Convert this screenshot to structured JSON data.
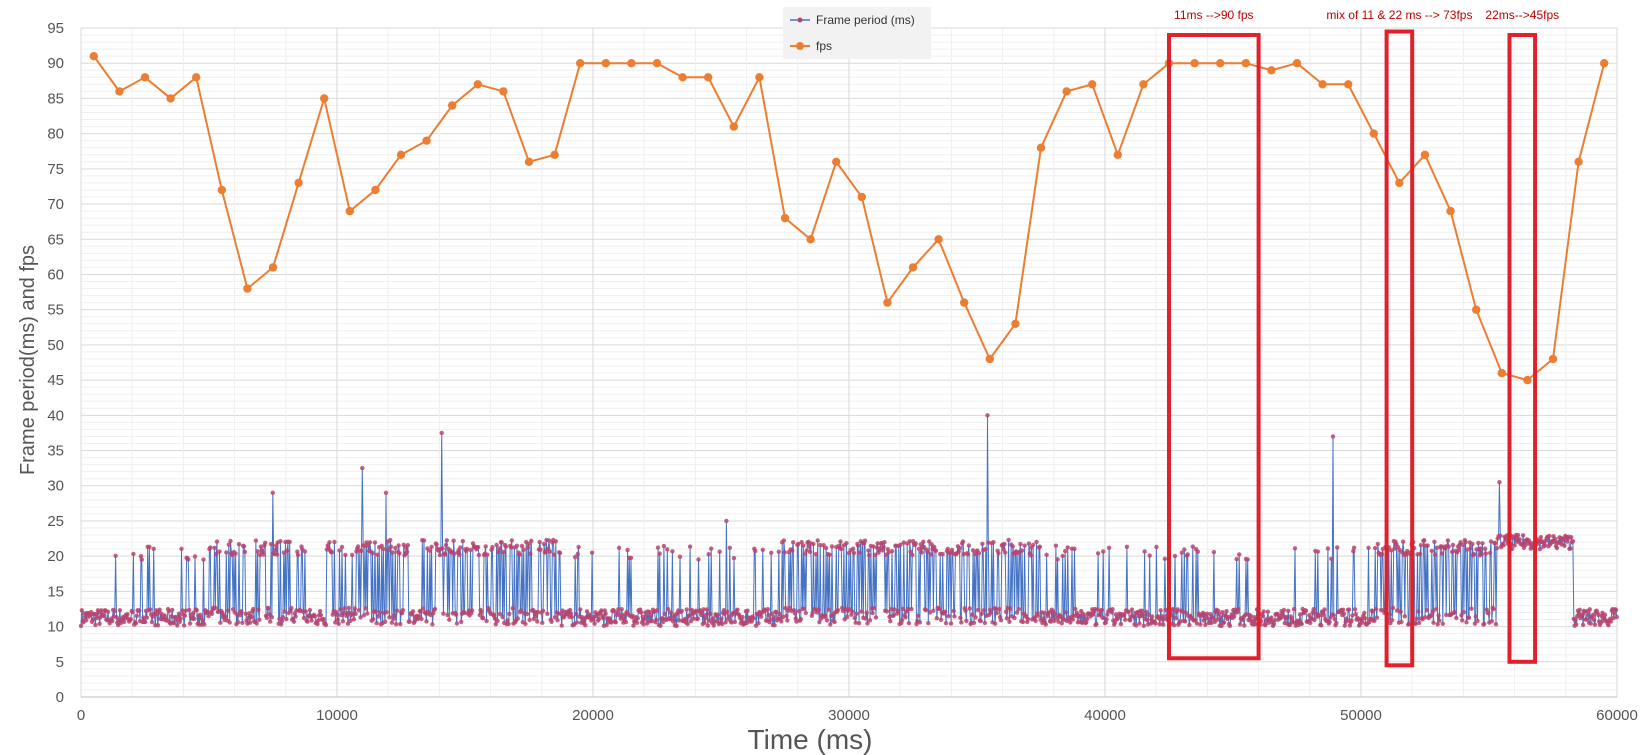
{
  "chart_data": {
    "type": "line",
    "title": "",
    "xlabel": "Time (ms)",
    "ylabel": "Frame period(ms) and fps",
    "xlim": [
      0,
      60000
    ],
    "ylim": [
      0,
      95
    ],
    "x_ticks": [
      "0",
      "10000",
      "20000",
      "30000",
      "40000",
      "50000",
      "60000"
    ],
    "y_ticks": [
      "0",
      "5",
      "10",
      "15",
      "20",
      "25",
      "30",
      "35",
      "40",
      "45",
      "50",
      "55",
      "60",
      "65",
      "70",
      "75",
      "80",
      "85",
      "90",
      "95"
    ],
    "grid": true,
    "legend_position": "top-center",
    "series": [
      {
        "name": "Frame period (ms)",
        "color": "#4472C4",
        "marker_color": "#B8446E",
        "note_regions": [
          {
            "x_range": [
              0,
              1300
            ],
            "level": "11"
          },
          {
            "x_range": [
              1300,
              5000
            ],
            "level": "11 with spikes to 21"
          },
          {
            "x_range": [
              5000,
              8800
            ],
            "level": "mix 11/21"
          },
          {
            "x_range": [
              8800,
              9600
            ],
            "level": "11"
          },
          {
            "x_range": [
              9600,
              12800
            ],
            "level": "mix 11/21"
          },
          {
            "x_range": [
              12800,
              13300
            ],
            "level": "11"
          },
          {
            "x_range": [
              13300,
              18600
            ],
            "level": "mix 11/21"
          },
          {
            "x_range": [
              18600,
              27200
            ],
            "level": "11 with rare spikes"
          },
          {
            "x_range": [
              27200,
              37500
            ],
            "level": "mix 11/22"
          },
          {
            "x_range": [
              37500,
              50500
            ],
            "level": "11 with rare spikes"
          },
          {
            "x_range": [
              50500,
              55300
            ],
            "level": "mix 11/22"
          },
          {
            "x_range": [
              55300,
              58300
            ],
            "level": "22"
          },
          {
            "x_range": [
              58300,
              60000
            ],
            "level": "11"
          }
        ],
        "spikes": [
          {
            "x": 7500,
            "y": 29
          },
          {
            "x": 11000,
            "y": 32.5
          },
          {
            "x": 11900,
            "y": 29
          },
          {
            "x": 14100,
            "y": 37.5
          },
          {
            "x": 25200,
            "y": 25
          },
          {
            "x": 35400,
            "y": 40
          },
          {
            "x": 48900,
            "y": 37
          },
          {
            "x": 55400,
            "y": 30.5
          }
        ]
      },
      {
        "name": "fps",
        "color": "#ED7D31",
        "x": [
          500,
          1500,
          2500,
          3500,
          4500,
          5500,
          6500,
          7500,
          8500,
          9500,
          10500,
          11500,
          12500,
          13500,
          14500,
          15500,
          16500,
          17500,
          18500,
          19500,
          20500,
          21500,
          22500,
          23500,
          24500,
          25500,
          26500,
          27500,
          28500,
          29500,
          30500,
          31500,
          32500,
          33500,
          34500,
          35500,
          36500,
          37500,
          38500,
          39500,
          40500,
          41500,
          42500,
          43500,
          44500,
          45500,
          46500,
          47500,
          48500,
          49500,
          50500,
          51500,
          52500,
          53500,
          54500,
          55500,
          56500,
          57500,
          58500,
          59500
        ],
        "values": [
          91,
          86,
          88,
          85,
          88,
          72,
          58,
          61,
          73,
          85,
          69,
          72,
          77,
          79,
          84,
          87,
          86,
          76,
          77,
          90,
          90,
          90,
          90,
          88,
          88,
          81,
          88,
          68,
          65,
          76,
          71,
          56,
          61,
          65,
          56,
          48,
          53,
          78,
          86,
          87,
          77,
          87,
          90,
          90,
          90,
          90,
          89,
          90,
          87,
          87,
          80,
          73,
          77,
          69,
          55,
          46,
          45,
          48,
          76,
          90
        ]
      }
    ],
    "annotations": [
      {
        "text": "11ms -->90 fps",
        "x_range": [
          42500,
          46000
        ],
        "y_range": [
          5.5,
          94
        ]
      },
      {
        "text": "mix of 11 & 22 ms --> 73fps",
        "x_range": [
          51000,
          52000
        ],
        "y_range": [
          4.5,
          94.5
        ]
      },
      {
        "text": "22ms-->45fps",
        "x_range": [
          55800,
          56800
        ],
        "y_range": [
          5,
          94
        ]
      }
    ],
    "annotation_color": "#E0202A"
  }
}
